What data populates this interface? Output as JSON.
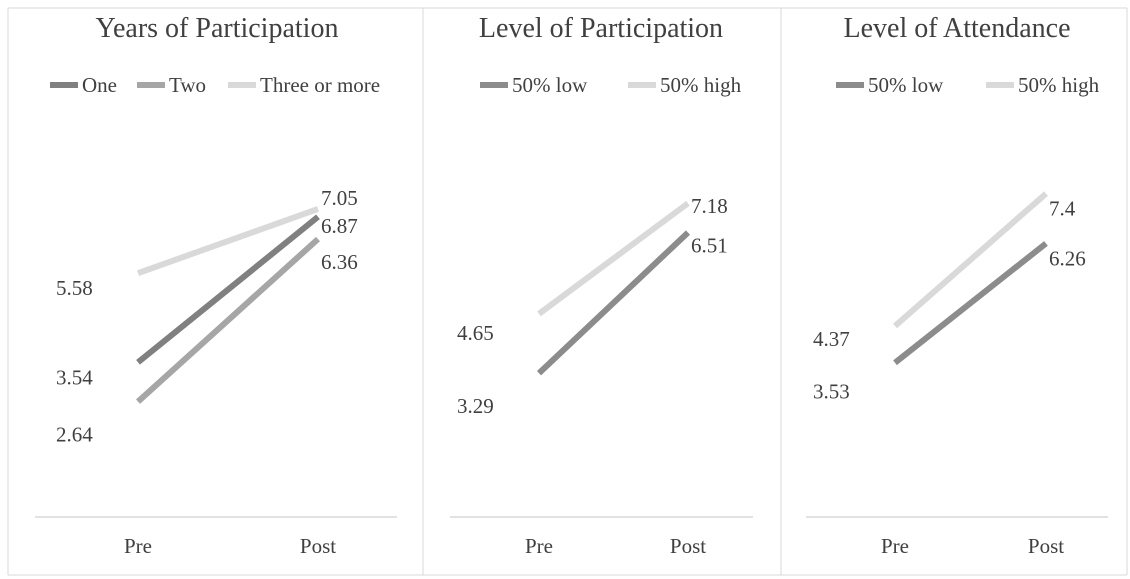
{
  "chart_data": [
    {
      "type": "line",
      "title": "Years of Participation",
      "categories": [
        "Pre",
        "Post"
      ],
      "series": [
        {
          "name": "One",
          "values": [
            3.54,
            6.87
          ],
          "color": "#808080"
        },
        {
          "name": "Two",
          "values": [
            2.64,
            6.36
          ],
          "color": "#a6a6a6"
        },
        {
          "name": "Three or more",
          "values": [
            5.58,
            7.05
          ],
          "color": "#d9d9d9"
        }
      ],
      "ylim": [
        0,
        10
      ],
      "grid": false,
      "legend": "top"
    },
    {
      "type": "line",
      "title": "Level of Participation",
      "categories": [
        "Pre",
        "Post"
      ],
      "series": [
        {
          "name": "50% low",
          "values": [
            3.29,
            6.51
          ],
          "color": "#8c8c8c"
        },
        {
          "name": "50% high",
          "values": [
            4.65,
            7.18
          ],
          "color": "#d9d9d9"
        }
      ],
      "ylim": [
        0,
        10
      ],
      "grid": false,
      "legend": "top"
    },
    {
      "type": "line",
      "title": "Level of Attendance",
      "categories": [
        "Pre",
        "Post"
      ],
      "series": [
        {
          "name": "50% low",
          "values": [
            3.53,
            6.26
          ],
          "color": "#8c8c8c"
        },
        {
          "name": "50% high",
          "values": [
            4.37,
            7.4
          ],
          "color": "#d9d9d9"
        }
      ],
      "ylim": [
        0,
        10
      ],
      "grid": false,
      "legend": "top"
    }
  ]
}
